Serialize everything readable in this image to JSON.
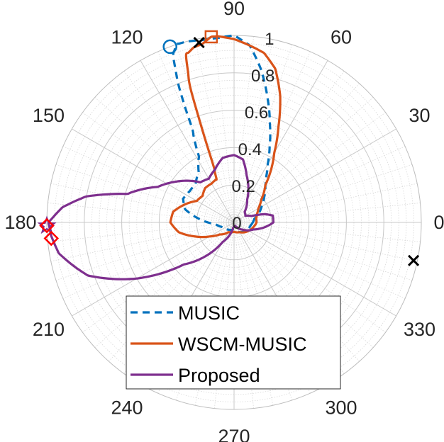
{
  "chart_data": {
    "type": "polar-line",
    "theta_unit": "degrees",
    "r_lim": [
      0,
      1
    ],
    "grid": true,
    "legend_placement": "bottom-left",
    "angle_ticks": [
      {
        "angle": 0,
        "label": "0"
      },
      {
        "angle": 30,
        "label": "30"
      },
      {
        "angle": 60,
        "label": "60"
      },
      {
        "angle": 90,
        "label": "90"
      },
      {
        "angle": 120,
        "label": "120"
      },
      {
        "angle": 150,
        "label": "150"
      },
      {
        "angle": 180,
        "label": "180"
      },
      {
        "angle": 210,
        "label": "210"
      },
      {
        "angle": 240,
        "label": "240"
      },
      {
        "angle": 270,
        "label": "270"
      },
      {
        "angle": 300,
        "label": "300"
      },
      {
        "angle": 330,
        "label": "330"
      }
    ],
    "radial_ticks": [
      {
        "r": 0,
        "label": "0"
      },
      {
        "r": 0.2,
        "label": "0.2"
      },
      {
        "r": 0.4,
        "label": "0.4"
      },
      {
        "r": 0.6,
        "label": "0.6"
      },
      {
        "r": 0.8,
        "label": "0.8"
      },
      {
        "r": 1,
        "label": "1"
      }
    ],
    "series": [
      {
        "name": "MUSIC",
        "color": "#0072BD",
        "dash": "dashed",
        "points": [
          [
            0,
            0.1
          ],
          [
            10,
            0.11
          ],
          [
            20,
            0.14
          ],
          [
            30,
            0.17
          ],
          [
            40,
            0.21
          ],
          [
            50,
            0.26
          ],
          [
            55,
            0.3
          ],
          [
            60,
            0.36
          ],
          [
            65,
            0.45
          ],
          [
            70,
            0.56
          ],
          [
            75,
            0.69
          ],
          [
            80,
            0.83
          ],
          [
            85,
            0.95
          ],
          [
            90,
            1.0
          ],
          [
            95,
            0.99
          ],
          [
            100,
            0.99
          ],
          [
            105,
            1.0
          ],
          [
            108,
            1.0
          ],
          [
            110,
            0.95
          ],
          [
            112,
            0.79
          ],
          [
            114,
            0.55
          ],
          [
            118,
            0.4
          ],
          [
            125,
            0.33
          ],
          [
            135,
            0.29
          ],
          [
            145,
            0.29
          ],
          [
            155,
            0.3
          ],
          [
            165,
            0.27
          ],
          [
            175,
            0.18
          ],
          [
            185,
            0.1
          ],
          [
            200,
            0.07
          ],
          [
            230,
            0.05
          ],
          [
            260,
            0.04
          ],
          [
            280,
            0.05
          ],
          [
            300,
            0.06
          ],
          [
            330,
            0.08
          ],
          [
            350,
            0.09
          ],
          [
            360,
            0.1
          ]
        ],
        "peak": {
          "angle": 108,
          "r": 1.0
        }
      },
      {
        "name": "WSCM-MUSIC",
        "color": "#D95319",
        "dash": "solid",
        "points": [
          [
            0,
            0.12
          ],
          [
            10,
            0.12
          ],
          [
            20,
            0.13
          ],
          [
            30,
            0.15
          ],
          [
            40,
            0.19
          ],
          [
            50,
            0.26
          ],
          [
            60,
            0.43
          ],
          [
            65,
            0.56
          ],
          [
            70,
            0.72
          ],
          [
            75,
            0.85
          ],
          [
            80,
            0.92
          ],
          [
            85,
            0.95
          ],
          [
            90,
            0.98
          ],
          [
            95,
            0.999
          ],
          [
            97,
            1.0
          ],
          [
            100,
            0.97
          ],
          [
            103,
            0.96
          ],
          [
            106,
            0.93
          ],
          [
            108,
            0.75
          ],
          [
            109,
            0.5
          ],
          [
            110,
            0.32
          ],
          [
            112,
            0.25
          ],
          [
            120,
            0.24
          ],
          [
            130,
            0.24
          ],
          [
            140,
            0.22
          ],
          [
            150,
            0.23
          ],
          [
            160,
            0.28
          ],
          [
            170,
            0.33
          ],
          [
            180,
            0.34
          ],
          [
            190,
            0.3
          ],
          [
            200,
            0.22
          ],
          [
            210,
            0.15
          ],
          [
            220,
            0.1
          ],
          [
            240,
            0.06
          ],
          [
            270,
            0.05
          ],
          [
            300,
            0.06
          ],
          [
            330,
            0.09
          ],
          [
            360,
            0.12
          ]
        ],
        "peak": {
          "angle": 97,
          "r": 1.0
        }
      },
      {
        "name": "Proposed",
        "color": "#7E2F8E",
        "dash": "solid",
        "points": [
          [
            0,
            0.21
          ],
          [
            10,
            0.21
          ],
          [
            15,
            0.17
          ],
          [
            20,
            0.1
          ],
          [
            30,
            0.07
          ],
          [
            45,
            0.08
          ],
          [
            60,
            0.14
          ],
          [
            75,
            0.26
          ],
          [
            82,
            0.34
          ],
          [
            90,
            0.36
          ],
          [
            100,
            0.35
          ],
          [
            110,
            0.3
          ],
          [
            120,
            0.27
          ],
          [
            130,
            0.28
          ],
          [
            145,
            0.38
          ],
          [
            155,
            0.45
          ],
          [
            165,
            0.59
          ],
          [
            170,
            0.8
          ],
          [
            175,
            0.92
          ],
          [
            180,
            0.99
          ],
          [
            184,
            0.98
          ],
          [
            190,
            0.95
          ],
          [
            200,
            0.83
          ],
          [
            210,
            0.6
          ],
          [
            220,
            0.35
          ],
          [
            240,
            0.12
          ],
          [
            260,
            0.03
          ],
          [
            270,
            0.02
          ],
          [
            290,
            0.02
          ],
          [
            300,
            0.03
          ],
          [
            320,
            0.06
          ],
          [
            340,
            0.11
          ],
          [
            350,
            0.16
          ],
          [
            360,
            0.21
          ]
        ],
        "peak": {
          "angle": 181,
          "r": 1.0
        }
      }
    ],
    "markers": [
      {
        "symbol": "circle",
        "color": "#0072BD",
        "angle": 110,
        "r": 1.0
      },
      {
        "symbol": "square",
        "color": "#D95319",
        "angle": 97,
        "r": 1.0
      },
      {
        "symbol": "x",
        "color": "#000000",
        "angle": 101,
        "r": 0.98
      },
      {
        "symbol": "x",
        "color": "#000000",
        "angle": -12,
        "r": 0.98
      },
      {
        "symbol": "star",
        "color": "#7E2F8E",
        "angle": 181,
        "r": 1.0
      },
      {
        "symbol": "diamond",
        "color": "#FF0000",
        "angle": 181,
        "r": 1.0
      },
      {
        "symbol": "diamond",
        "color": "#FF0000",
        "angle": 185,
        "r": 0.98
      }
    ]
  }
}
